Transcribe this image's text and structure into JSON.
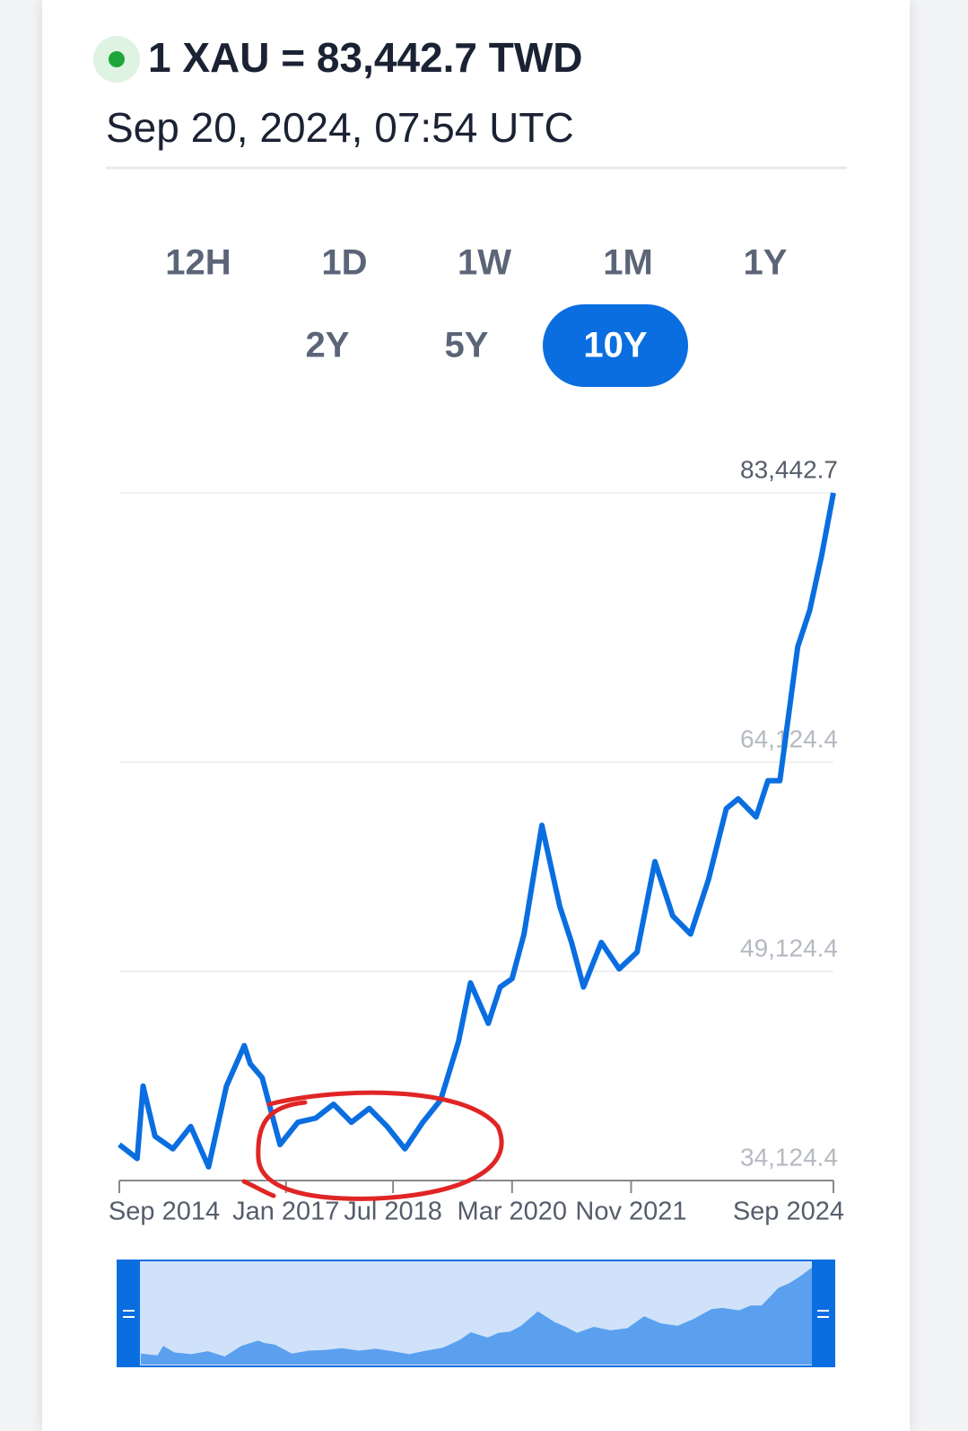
{
  "header": {
    "title": "1 XAU = 83,442.7 TWD",
    "timestamp": "Sep 20, 2024, 07:54 UTC"
  },
  "ranges": {
    "buttons": [
      "12H",
      "1D",
      "1W",
      "1M",
      "1Y",
      "2Y",
      "5Y",
      "10Y"
    ],
    "selected": 7
  },
  "chart_data": {
    "type": "line",
    "color": "#0a6ee0",
    "x": [
      "2014-09",
      "2014-12",
      "2015-01",
      "2015-03",
      "2015-06",
      "2015-09",
      "2015-12",
      "2016-03",
      "2016-06",
      "2016-07",
      "2016-09",
      "2016-12",
      "2017-03",
      "2017-06",
      "2017-09",
      "2017-12",
      "2018-03",
      "2018-06",
      "2018-09",
      "2018-12",
      "2019-03",
      "2019-06",
      "2019-08",
      "2019-11",
      "2020-01",
      "2020-03",
      "2020-05",
      "2020-08",
      "2020-11",
      "2021-01",
      "2021-03",
      "2021-06",
      "2021-09",
      "2021-12",
      "2022-03",
      "2022-06",
      "2022-09",
      "2022-12",
      "2023-03",
      "2023-05",
      "2023-08",
      "2023-10",
      "2023-12",
      "2024-03",
      "2024-05",
      "2024-07",
      "2024-09"
    ],
    "values": [
      36700,
      35700,
      40900,
      37300,
      36400,
      38000,
      35100,
      40900,
      43800,
      42500,
      41500,
      36700,
      38300,
      38600,
      39600,
      38300,
      39300,
      38000,
      36400,
      38300,
      39900,
      44100,
      48300,
      45400,
      48000,
      48600,
      51800,
      59600,
      53800,
      51200,
      48000,
      51200,
      49300,
      50500,
      57000,
      53100,
      51800,
      55700,
      60800,
      61500,
      60200,
      62800,
      62800,
      72400,
      75000,
      78900,
      83442.7
    ],
    "xlim": [
      "2014-09",
      "2024-09"
    ],
    "xticks": [
      {
        "value": "2014-09",
        "label": "Sep 2014"
      },
      {
        "value": "2017-01",
        "label": "Jan 2017"
      },
      {
        "value": "2018-07",
        "label": "Jul 2018"
      },
      {
        "value": "2020-03",
        "label": "Mar 2020"
      },
      {
        "value": "2021-11",
        "label": "Nov 2021"
      },
      {
        "value": "2024-09",
        "label": "Sep 2024"
      }
    ],
    "ylim": [
      34124.4,
      83442.7
    ],
    "yticks": [
      {
        "value": 34124.4,
        "label": "34,124.4"
      },
      {
        "value": 49124.4,
        "label": "49,124.4"
      },
      {
        "value": 64124.4,
        "label": "64,124.4"
      },
      {
        "value": 83442.7,
        "label": "83,442.7"
      }
    ],
    "grid": true
  }
}
